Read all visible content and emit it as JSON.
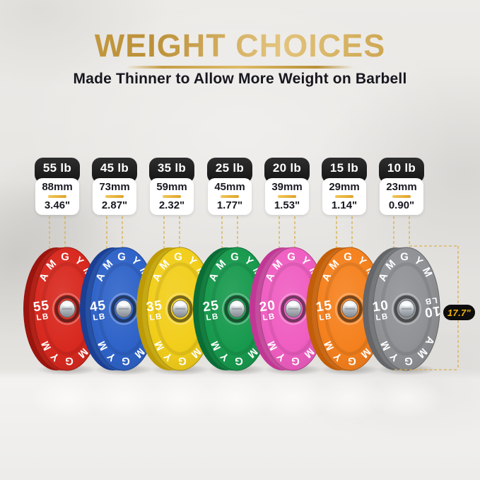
{
  "header": {
    "title": "WEIGHT CHOICES",
    "subtitle": "Made Thinner to Allow More Weight on Barbell"
  },
  "brand": "AMGYM",
  "diameter_badge": "17.7\"",
  "plates": [
    {
      "id": "55lb",
      "label": "55 lb",
      "thickness_mm": "88mm",
      "thickness_in": "3.46\"",
      "weight": "55",
      "unit": "LB",
      "color_name": "red",
      "face": "#d8291f",
      "rim": "#9b140e"
    },
    {
      "id": "45lb",
      "label": "45 lb",
      "thickness_mm": "73mm",
      "thickness_in": "2.87\"",
      "weight": "45",
      "unit": "LB",
      "color_name": "blue",
      "face": "#2f63c8",
      "rim": "#1b3f94"
    },
    {
      "id": "35lb",
      "label": "35 lb",
      "thickness_mm": "59mm",
      "thickness_in": "2.32\"",
      "weight": "35",
      "unit": "LB",
      "color_name": "yellow",
      "face": "#f2ce1b",
      "rim": "#bd9a06"
    },
    {
      "id": "25lb",
      "label": "25 lb",
      "thickness_mm": "45mm",
      "thickness_in": "1.77\"",
      "weight": "25",
      "unit": "LB",
      "color_name": "green",
      "face": "#189a4e",
      "rim": "#0a6d35"
    },
    {
      "id": "20lb",
      "label": "20 lb",
      "thickness_mm": "39mm",
      "thickness_in": "1.53\"",
      "weight": "20",
      "unit": "LB",
      "color_name": "pink",
      "face": "#ef5ec1",
      "rim": "#c23795"
    },
    {
      "id": "15lb",
      "label": "15 lb",
      "thickness_mm": "29mm",
      "thickness_in": "1.14\"",
      "weight": "15",
      "unit": "LB",
      "color_name": "orange",
      "face": "#f5811e",
      "rim": "#c25e08"
    },
    {
      "id": "10lb",
      "label": "10 lb",
      "thickness_mm": "23mm",
      "thickness_in": "0.90\"",
      "weight": "10",
      "unit": "LB",
      "color_name": "gray",
      "face": "#909295",
      "rim": "#646669"
    }
  ],
  "colors": {
    "gold_accent": "#c9a24b",
    "dashed_line": "#d8b254",
    "badge_bg": "#0d0d0d",
    "badge_text": "#f2b40e",
    "card_header_bg": "#1d1d1d",
    "card_text": "#191922",
    "plate_text": "#ffffff"
  }
}
